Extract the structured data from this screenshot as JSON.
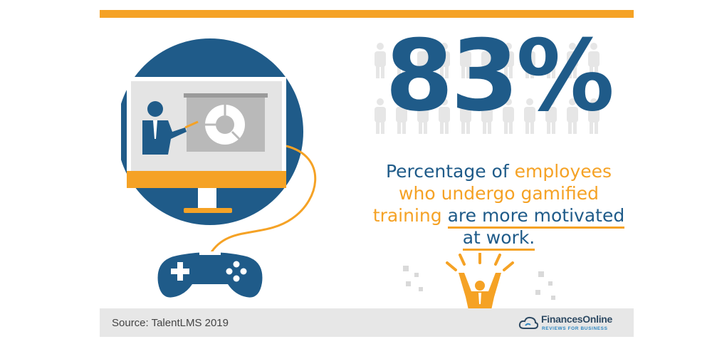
{
  "stat": {
    "value": "83%"
  },
  "description": {
    "part1": "Percentage of ",
    "part2": "employees",
    "part3": "who undergo gamified",
    "part4": "training",
    "part5": "are more motivated",
    "part6": "at work."
  },
  "footer": {
    "source": "Source: TalentLMS 2019",
    "brand_name": "FinancesOnline",
    "brand_tagline": "REVIEWS FOR BUSINESS"
  },
  "colors": {
    "accent": "#f5a225",
    "primary": "#1f5b89",
    "footer_bg": "#e7e7e7"
  },
  "icons": [
    "presenter-on-monitor-icon",
    "game-controller-icon",
    "people-crowd-icon",
    "celebrating-person-icon",
    "financesonline-logo-icon"
  ]
}
